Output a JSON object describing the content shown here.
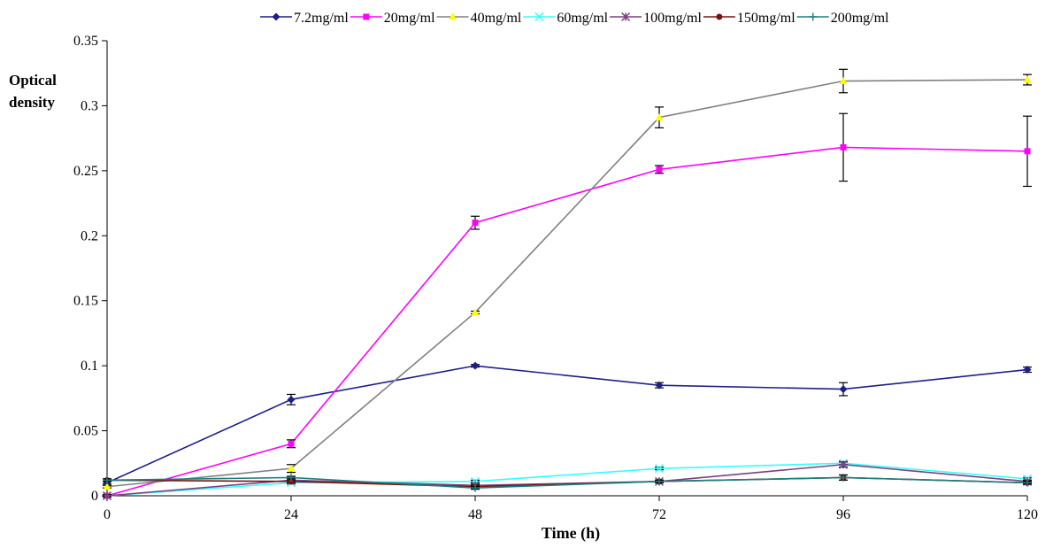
{
  "chart_data": {
    "type": "line",
    "xlabel": "Time (h)",
    "ylabel_lines": [
      "Optical",
      "density"
    ],
    "x": [
      0,
      24,
      48,
      72,
      96,
      120
    ],
    "x_ticks": [
      "0",
      "24",
      "48",
      "72",
      "96",
      "120"
    ],
    "ylim": [
      0,
      0.35
    ],
    "y_ticks": [
      "0",
      "0.05",
      "0.1",
      "0.15",
      "0.2",
      "0.25",
      "0.3",
      "0.35"
    ],
    "legend_position": "top",
    "grid": false,
    "series": [
      {
        "name": "7.2mg/ml",
        "color": "#1f1f8a",
        "marker": "diamond",
        "values": [
          0.01,
          0.074,
          0.1,
          0.085,
          0.082,
          0.097
        ],
        "errors": [
          0.001,
          0.004,
          0.001,
          0.002,
          0.005,
          0.002
        ]
      },
      {
        "name": "20mg/ml",
        "color": "#ff00ff",
        "marker": "square",
        "values": [
          0.0,
          0.04,
          0.21,
          0.251,
          0.268,
          0.265
        ],
        "errors": [
          0.001,
          0.003,
          0.005,
          0.003,
          0.026,
          0.027
        ]
      },
      {
        "name": "40mg/ml",
        "color": "#808080",
        "marker_color": "#ffff00",
        "marker": "triangle",
        "values": [
          0.007,
          0.021,
          0.141,
          0.291,
          0.319,
          0.32
        ],
        "errors": [
          0.001,
          0.003,
          0.001,
          0.008,
          0.009,
          0.004
        ]
      },
      {
        "name": "60mg/ml",
        "color": "#33ffff",
        "marker": "x",
        "values": [
          0.0,
          0.01,
          0.011,
          0.021,
          0.025,
          0.013
        ],
        "errors": [
          0.001,
          0.001,
          0.001,
          0.001,
          0.001,
          0.001
        ]
      },
      {
        "name": "100mg/ml",
        "color": "#7f3f7f",
        "marker": "star",
        "values": [
          0.0,
          0.012,
          0.008,
          0.011,
          0.024,
          0.011
        ],
        "errors": [
          0.001,
          0.001,
          0.001,
          0.001,
          0.002,
          0.001
        ]
      },
      {
        "name": "150mg/ml",
        "color": "#7f1010",
        "marker": "circle",
        "values": [
          0.012,
          0.011,
          0.007,
          0.011,
          0.014,
          0.01
        ],
        "errors": [
          0.001,
          0.001,
          0.001,
          0.001,
          0.002,
          0.001
        ]
      },
      {
        "name": "200mg/ml",
        "color": "#1a8080",
        "marker": "plus",
        "values": [
          0.012,
          0.014,
          0.006,
          0.011,
          0.014,
          0.01
        ],
        "errors": [
          0.001,
          0.001,
          0.001,
          0.001,
          0.002,
          0.001
        ]
      }
    ]
  }
}
